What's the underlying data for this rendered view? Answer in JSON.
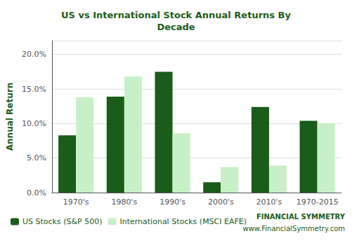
{
  "chart_data": {
    "type": "bar",
    "title": "US vs International Stock Annual Returns By\nDecade",
    "ylabel": "Annual Return",
    "categories": [
      "1970's",
      "1980's",
      "1990's",
      "2000's",
      "2010's",
      "1970-2015"
    ],
    "series": [
      {
        "name": "US Stocks (S&P 500)",
        "color": "#1a5c1a",
        "values": [
          0.083,
          0.139,
          0.175,
          0.015,
          0.124,
          0.104
        ]
      },
      {
        "name": "International Stocks (MSCI EAFE)",
        "color": "#c8f0c8",
        "values": [
          0.138,
          0.168,
          0.086,
          0.037,
          0.039,
          0.1
        ]
      }
    ],
    "ylim": [
      0,
      0.22
    ],
    "yticks": [
      {
        "value": 0.0,
        "label": "0.0%"
      },
      {
        "value": 0.05,
        "label": "5.0%"
      },
      {
        "value": 0.1,
        "label": "10.0%"
      },
      {
        "value": 0.15,
        "label": "15.0%"
      },
      {
        "value": 0.2,
        "label": "20.0%"
      }
    ],
    "grid": true,
    "legend": "lower left",
    "annotations": [
      "FINANCIAL SYMMETRY",
      "www.FinancialSymmetry.com"
    ]
  }
}
